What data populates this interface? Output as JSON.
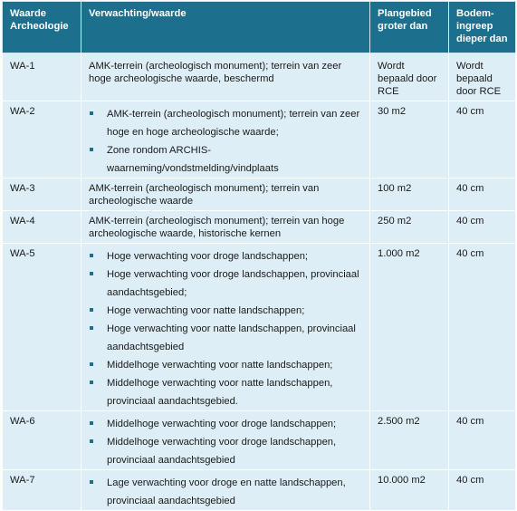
{
  "headers": [
    "Waarde Archeologie",
    "Verwachting/waarde",
    "Plangebied groter dan",
    "Bodem-ingreep dieper dan"
  ],
  "header_display": [
    "Waarde\nArcheologie",
    "Verwachting/waarde",
    "Plangebied\ngroter dan",
    "Bodem-\ningreep\ndieper dan"
  ],
  "rows": [
    {
      "code": "WA-1",
      "text": "AMK-terrein (archeologisch monument); terrein van zeer hoge archeologische waarde, beschermd",
      "area": "Wordt\nbepaald door\nRCE",
      "depth": "Wordt\nbepaald\ndoor RCE"
    },
    {
      "code": "WA-2",
      "items": [
        "AMK-terrein (archeologisch monument); terrein van zeer hoge en hoge archeologische waarde;",
        "Zone rondom ARCHIS-waarneming/vondstmelding/vindplaats"
      ],
      "area": "30 m2",
      "depth": "40 cm"
    },
    {
      "code": "WA-3",
      "text": "AMK-terrein (archeologisch monument); terrein van archeologische waarde",
      "area": "100 m2",
      "depth": "40 cm"
    },
    {
      "code": "WA-4",
      "text": "AMK-terrein (archeologisch monument); terrein van hoge archeologische waarde, historische kernen",
      "area": "250 m2",
      "depth": "40 cm"
    },
    {
      "code": "WA-5",
      "items": [
        "Hoge verwachting voor droge landschappen;",
        "Hoge verwachting voor droge landschappen, provinciaal aandachtsgebied;",
        "Hoge verwachting voor natte landschappen;",
        "Hoge verwachting voor natte landschappen, provinciaal aandachtsgebied",
        "Middelhoge verwachting voor natte landschappen;",
        "Middelhoge verwachting voor natte landschappen, provinciaal aandachtsgebied."
      ],
      "area": "1.000 m2",
      "depth": "40 cm"
    },
    {
      "code": "WA-6",
      "items": [
        "Middelhoge verwachting voor droge landschappen;",
        "Middelhoge verwachting voor droge landschappen, provinciaal aandachtsgebied"
      ],
      "area": "2.500 m2",
      "depth": "40 cm"
    },
    {
      "code": "WA-7",
      "items": [
        "Lage verwachting voor droge en natte landschappen, provinciaal aandachtsgebied"
      ],
      "area": "10.000 m2",
      "depth": "40 cm"
    }
  ],
  "colors": {
    "header_bg": "#1d6f8e",
    "cell_bg": "#ddeef7",
    "bullet": "#1d6f8e"
  }
}
